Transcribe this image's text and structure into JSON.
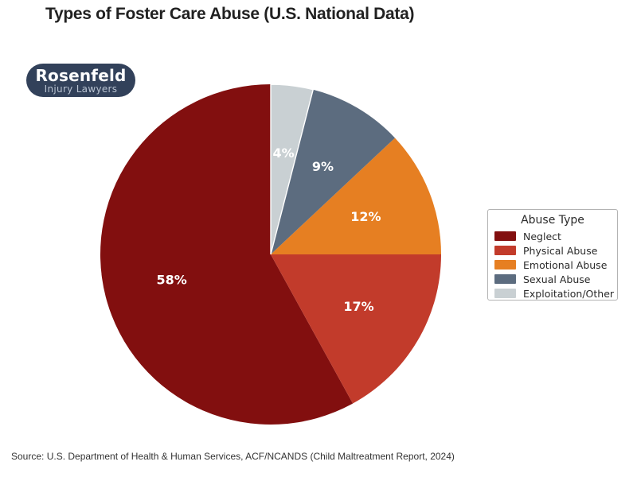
{
  "title": "Types of Foster Care Abuse (U.S. National Data)",
  "logo": {
    "name": "Rosenfeld",
    "tagline": "Injury Lawyers",
    "background_color": "#32415a"
  },
  "legend": {
    "title": "Abuse Type",
    "position": "right"
  },
  "source": "Source: U.S. Department of Health & Human Services, ACF/NCANDS (Child Maltreatment Report, 2024)",
  "chart_data": {
    "type": "pie",
    "title": "Types of Foster Care Abuse (U.S. National Data)",
    "legend_title": "Abuse Type",
    "legend_position": "right",
    "start_angle": 90,
    "counterclockwise": true,
    "labels_inside": true,
    "slices": [
      {
        "label": "Neglect",
        "value": 58,
        "pct": "58%",
        "color": "#820f0f",
        "white_edge": false
      },
      {
        "label": "Physical Abuse",
        "value": 17,
        "pct": "17%",
        "color": "#c23b2b",
        "white_edge": false
      },
      {
        "label": "Emotional Abuse",
        "value": 12,
        "pct": "12%",
        "color": "#e67f22",
        "white_edge": false
      },
      {
        "label": "Sexual Abuse",
        "value": 9,
        "pct": "9%",
        "color": "#5c6c7f",
        "white_edge": false
      },
      {
        "label": "Exploitation/Other",
        "value": 4,
        "pct": "4%",
        "color": "#c9d0d3",
        "white_edge": true
      }
    ]
  }
}
